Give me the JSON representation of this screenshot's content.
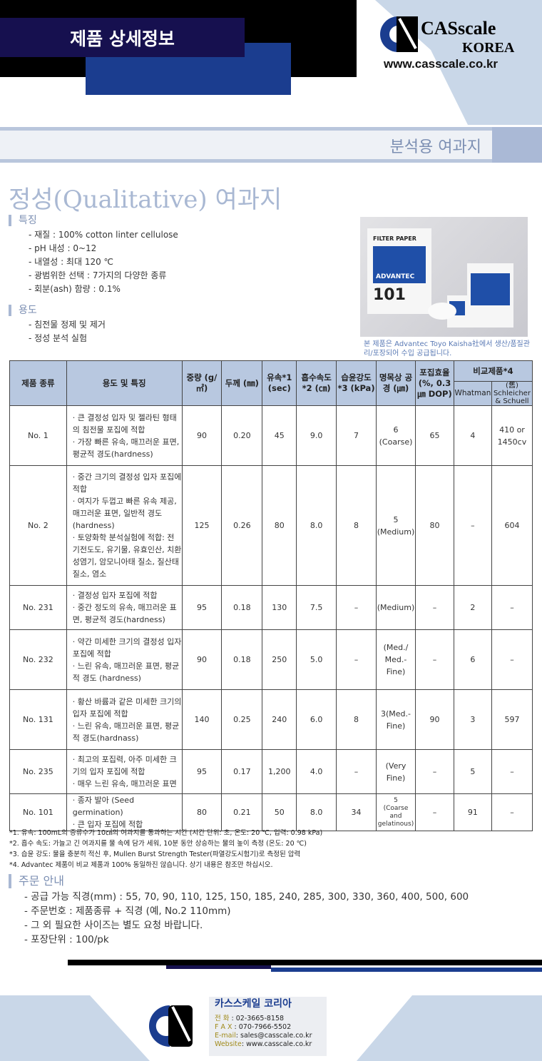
{
  "header": {
    "title": "제품 상세정보",
    "logo_text": "CASscale KOREA",
    "url": "www.casscale.co.kr"
  },
  "category": "분석용 여과지",
  "page_title": "정성(Qualitative) 여과지",
  "features": {
    "heading": "특징",
    "items": [
      "- 재질 : 100% cotton linter cellulose",
      "- pH 내성 : 0~12",
      "- 내열성 : 최대 120 ℃",
      "- 광범위한 선택 : 7가지의 다양한 종류",
      "- 회분(ash) 함량 : 0.1%"
    ]
  },
  "uses": {
    "heading": "용도",
    "items": [
      "- 침전물 정제 및 제거",
      "- 정성 분석 실험"
    ]
  },
  "photo": {
    "box_text": "FILTER PAPER",
    "brand": "ADVANTEC",
    "number": "101",
    "caption": "본 제품은 Advantec Toyo Kaisha社에서 생산/품질관리/포장되어 수입 공급됩니다."
  },
  "table": {
    "headers": [
      "제품 종류",
      "용도 및 특징",
      "중량 (g/㎡)",
      "두께 (㎜)",
      "유속*1 (sec)",
      "흡수속도*2 (㎝)",
      "습윤강도*3 (kPa)",
      "명목상 공경 (㎛)",
      "포집효율 (%, 0.3㎛ DOP)",
      "비교제품*4",
      "Whatman",
      "(舊) Schleicher & Schuell"
    ],
    "rows": [
      {
        "c": [
          "No. 1",
          "· 큰 결정성 입자 및 젤라틴 형태의 침전물 포집에 적합\n· 가장 빠른 유속, 매끄러운 표면, 평균적 경도(hardness)",
          "90",
          "0.20",
          "45",
          "9.0",
          "7",
          "6\n(Coarse)",
          "65",
          "4",
          "410 or\n1450cv"
        ]
      },
      {
        "c": [
          "No. 2",
          "· 중간 크기의 결정성 입자 포집에 적합\n· 여지가 두껍고 빠른 유속 제공, 매끄러운 표면, 일반적 경도 (hardness)\n· 토양화학 분석실험에 적합: 전기전도도, 유기물, 유효인산, 치환성염기, 암모니아태 질소, 질산태질소, 염소",
          "125",
          "0.26",
          "80",
          "8.0",
          "8",
          "5\n(Medium)",
          "80",
          "–",
          "604"
        ]
      },
      {
        "c": [
          "No. 231",
          "· 결정성 입자 포집에 적합\n· 중간 정도의 유속, 매끄러운 표면, 평균적 경도(hardness)",
          "95",
          "0.18",
          "130",
          "7.5",
          "–",
          "(Medium)",
          "–",
          "2",
          "–"
        ]
      },
      {
        "c": [
          "No. 232",
          "· 약간 미세한 크기의 결정성 입자 포집에 적합\n· 느린 유속, 매끄러운 표면, 평균적 경도 (hardness)",
          "90",
          "0.18",
          "250",
          "5.0",
          "–",
          "(Med./\nMed.-\nFine)",
          "–",
          "6",
          "–"
        ]
      },
      {
        "c": [
          "No. 131",
          "· 황산 바륨과 같은 미세한 크기의 입자 포집에 적합\n· 느린 유속, 매끄러운 표면, 평균적 경도(hardnass)",
          "140",
          "0.25",
          "240",
          "6.0",
          "8",
          "3(Med.-\nFine)",
          "90",
          "3",
          "597"
        ]
      },
      {
        "c": [
          "No. 235",
          "· 최고의 포집력, 아주 미세한 크기의 입자 포집에 적합\n· 매우 느린 유속, 매끄러운 표면",
          "95",
          "0.17",
          "1,200",
          "4.0",
          "–",
          "(Very\nFine)",
          "–",
          "5",
          "–"
        ]
      },
      {
        "c": [
          "No. 101",
          "· 종자 발아 (Seed germination)\n· 큰 입자 포집에 적합",
          "80",
          "0.21",
          "50",
          "8.0",
          "34",
          "5\n(Coarse and\ngelatinous)",
          "–",
          "91",
          "–"
        ]
      }
    ]
  },
  "footnotes": [
    "*1. 유속: 100mL의 증류수가 10㎠의 여과지를 통과하는 시간 (시간 단위: 초, 온도: 20 ℃, 입력: 0.98 kPa)",
    "*2. 흡수 속도: 가늘고 긴 여과지를 물 속에 담가 세워, 10분 동안 상승하는 물의 높이 측정 (온도: 20 ℃)",
    "*3. 습윤 강도: 물을 충분히 적신 후, Mullen Burst Strength Tester(파열강도시험기)로 측정된 압력",
    "*4. Advantec 제품이 비교 제품과 100% 동일하진 않습니다. 상기 내용은 참조만 하십시오."
  ],
  "order": {
    "heading": "주문 안내",
    "items": [
      "- 공급 가능 직경(mm) : 55, 70, 90, 110, 125, 150, 185, 240, 285, 300, 330, 360, 400, 500, 600",
      "- 주문번호 : 제품종류 + 직경 (예, No.2 110mm)",
      "- 그 외 필요한 사이즈는 별도 요청 바랍니다.",
      "- 포장단위 : 100/pk"
    ]
  },
  "contact": {
    "company": "카스스케일 코리아",
    "phone_label": "전 화",
    "phone": ": 02-3665-8158",
    "fax_label": "F A X",
    "fax": ": 070-7966-5502",
    "email_label": "E-mail",
    "email": ": sales@casscale.co.kr",
    "web_label": "Website",
    "web": ": www.casscale.co.kr"
  },
  "colors": {
    "navy": "#16104f",
    "blue": "#1b3d8f",
    "header_cell": "#b8c8e0",
    "accent_text": "#7c8fb3"
  }
}
